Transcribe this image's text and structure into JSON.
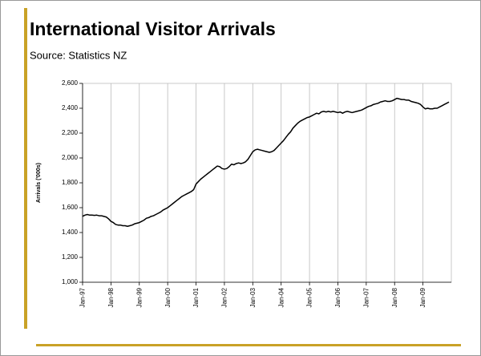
{
  "chart_data": {
    "type": "line",
    "title": "International Visitor Arrivals",
    "subtitle": "Source: Statistics NZ",
    "y_label": "Arrivals ('000s)",
    "categories": [
      "Jan-97",
      null,
      null,
      null,
      null,
      null,
      null,
      null,
      null,
      null,
      null,
      null,
      "Jan-98",
      null,
      null,
      null,
      null,
      null,
      null,
      null,
      null,
      null,
      null,
      null,
      "Jan-99",
      null,
      null,
      null,
      null,
      null,
      null,
      null,
      null,
      null,
      null,
      null,
      "Jan-00",
      null,
      null,
      null,
      null,
      null,
      null,
      null,
      null,
      null,
      null,
      null,
      "Jan-01",
      null,
      null,
      null,
      null,
      null,
      null,
      null,
      null,
      null,
      null,
      null,
      "Jan-02",
      null,
      null,
      null,
      null,
      null,
      null,
      null,
      null,
      null,
      null,
      null,
      "Jan-03",
      null,
      null,
      null,
      null,
      null,
      null,
      null,
      null,
      null,
      null,
      null,
      "Jan-04",
      null,
      null,
      null,
      null,
      null,
      null,
      null,
      null,
      null,
      null,
      null,
      "Jan-05",
      null,
      null,
      null,
      null,
      null,
      null,
      null,
      null,
      null,
      null,
      null,
      "Jan-06",
      null,
      null,
      null,
      null,
      null,
      null,
      null,
      null,
      null,
      null,
      null,
      "Jan-07",
      null,
      null,
      null,
      null,
      null,
      null,
      null,
      null,
      null,
      null,
      null,
      "Jan-08",
      null,
      null,
      null,
      null,
      null,
      null,
      null,
      null,
      null,
      null,
      null,
      "Jan-09",
      null,
      null,
      null,
      null,
      null,
      null,
      null,
      null,
      null,
      null,
      null
    ],
    "values": [
      1530,
      1540,
      1545,
      1540,
      1540,
      1538,
      1540,
      1535,
      1535,
      1530,
      1525,
      1510,
      1490,
      1480,
      1465,
      1460,
      1460,
      1455,
      1455,
      1450,
      1455,
      1460,
      1470,
      1475,
      1480,
      1490,
      1500,
      1515,
      1520,
      1530,
      1535,
      1545,
      1555,
      1565,
      1580,
      1590,
      1600,
      1615,
      1630,
      1645,
      1660,
      1675,
      1690,
      1700,
      1710,
      1720,
      1730,
      1745,
      1790,
      1810,
      1830,
      1845,
      1860,
      1875,
      1890,
      1905,
      1920,
      1935,
      1930,
      1915,
      1910,
      1915,
      1930,
      1950,
      1945,
      1955,
      1960,
      1955,
      1960,
      1970,
      1990,
      2020,
      2050,
      2065,
      2070,
      2065,
      2060,
      2055,
      2050,
      2045,
      2050,
      2060,
      2080,
      2100,
      2120,
      2140,
      2165,
      2190,
      2210,
      2240,
      2260,
      2280,
      2295,
      2305,
      2315,
      2325,
      2330,
      2340,
      2350,
      2360,
      2355,
      2370,
      2375,
      2370,
      2375,
      2370,
      2375,
      2370,
      2365,
      2370,
      2360,
      2370,
      2375,
      2370,
      2365,
      2370,
      2375,
      2380,
      2385,
      2395,
      2405,
      2415,
      2420,
      2430,
      2435,
      2440,
      2450,
      2455,
      2460,
      2455,
      2455,
      2460,
      2470,
      2480,
      2475,
      2470,
      2470,
      2465,
      2465,
      2455,
      2450,
      2445,
      2440,
      2430,
      2410,
      2395,
      2400,
      2395,
      2395,
      2400,
      2400,
      2410,
      2420,
      2430,
      2440,
      2450
    ],
    "color": "#000000",
    "ylim": [
      1000,
      2600
    ],
    "yticks": [
      {
        "value": 1000,
        "label": "1,000"
      },
      {
        "value": 1200,
        "label": "1,200"
      },
      {
        "value": 1400,
        "label": "1,400"
      },
      {
        "value": 1600,
        "label": "1,600"
      },
      {
        "value": 1800,
        "label": "1,800"
      },
      {
        "value": 2000,
        "label": "2,000"
      },
      {
        "value": 2200,
        "label": "2,200"
      },
      {
        "value": 2400,
        "label": "2,400"
      },
      {
        "value": 2600,
        "label": "2,600"
      }
    ],
    "grid": true
  }
}
